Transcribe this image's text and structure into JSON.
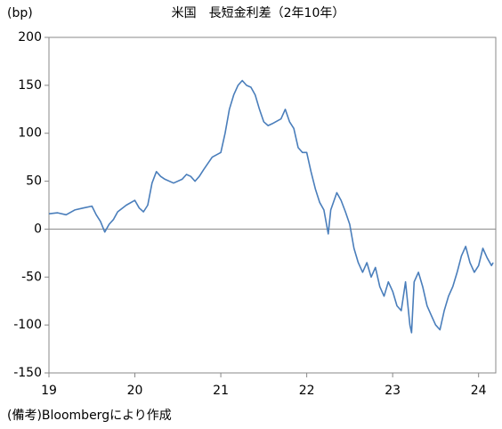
{
  "chart_data": {
    "type": "line",
    "title": "米国　長短金利差（2年10年）",
    "y_label": "(bp)",
    "note": "(備考)Bloombergにより作成",
    "xlim": [
      19,
      24.2
    ],
    "xticks": [
      19,
      20,
      21,
      22,
      23,
      24
    ],
    "ylim": [
      -150,
      200
    ],
    "yticks": [
      -150,
      -100,
      -50,
      0,
      50,
      100,
      150,
      200
    ],
    "reference_line": 0,
    "x": [
      19.0,
      19.1,
      19.2,
      19.3,
      19.4,
      19.5,
      19.55,
      19.6,
      19.65,
      19.7,
      19.75,
      19.8,
      19.9,
      20.0,
      20.05,
      20.1,
      20.15,
      20.2,
      20.25,
      20.3,
      20.35,
      20.45,
      20.55,
      20.6,
      20.65,
      20.7,
      20.75,
      20.8,
      20.9,
      21.0,
      21.05,
      21.1,
      21.15,
      21.2,
      21.25,
      21.3,
      21.35,
      21.4,
      21.45,
      21.5,
      21.55,
      21.6,
      21.7,
      21.75,
      21.8,
      21.85,
      21.9,
      21.95,
      22.0,
      22.05,
      22.1,
      22.15,
      22.2,
      22.25,
      22.28,
      22.35,
      22.4,
      22.45,
      22.5,
      22.55,
      22.6,
      22.65,
      22.7,
      22.75,
      22.8,
      22.85,
      22.9,
      22.95,
      23.0,
      23.05,
      23.1,
      23.15,
      23.2,
      23.22,
      23.25,
      23.3,
      23.35,
      23.4,
      23.45,
      23.5,
      23.55,
      23.6,
      23.65,
      23.7,
      23.75,
      23.8,
      23.85,
      23.9,
      23.95,
      24.0,
      24.05,
      24.1,
      24.15,
      24.17
    ],
    "series": [
      {
        "name": "2年10年",
        "color": "#4a7ebb",
        "values": [
          16,
          17,
          15,
          20,
          22,
          24,
          15,
          8,
          -3,
          5,
          10,
          18,
          25,
          30,
          22,
          18,
          25,
          48,
          60,
          55,
          52,
          48,
          52,
          57,
          55,
          50,
          55,
          62,
          75,
          80,
          100,
          125,
          140,
          150,
          155,
          150,
          148,
          140,
          125,
          112,
          108,
          110,
          115,
          125,
          112,
          105,
          85,
          80,
          80,
          60,
          42,
          28,
          20,
          -5,
          20,
          38,
          30,
          18,
          5,
          -20,
          -35,
          -45,
          -35,
          -50,
          -40,
          -60,
          -70,
          -55,
          -65,
          -80,
          -85,
          -55,
          -100,
          -108,
          -55,
          -45,
          -60,
          -80,
          -90,
          -100,
          -105,
          -85,
          -70,
          -60,
          -45,
          -28,
          -18,
          -35,
          -45,
          -38,
          -20,
          -30,
          -38,
          -35
        ]
      }
    ]
  }
}
